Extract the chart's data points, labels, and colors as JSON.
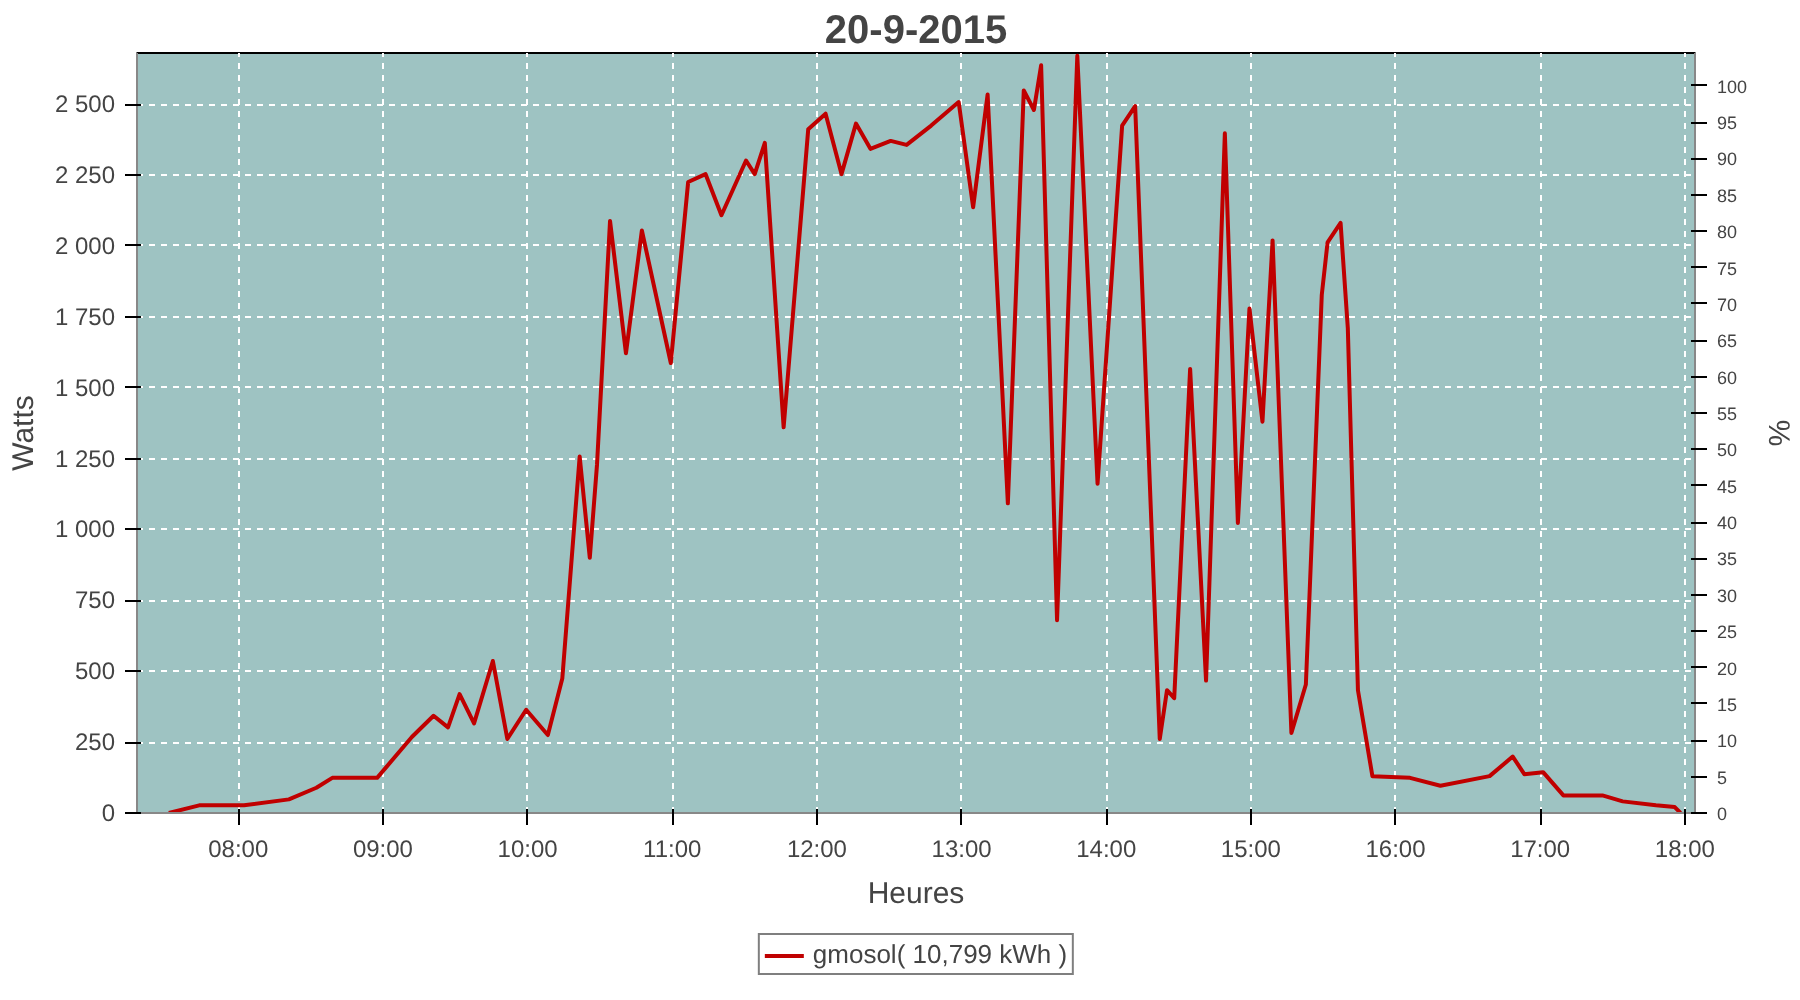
{
  "chart_data": {
    "type": "line",
    "title": "20-9-2015",
    "xlabel": "Heures",
    "ylabel": "Watts",
    "y2label": "%",
    "x": [
      7.52,
      7.73,
      8.04,
      8.35,
      8.54,
      8.65,
      8.96,
      9.2,
      9.35,
      9.45,
      9.53,
      9.63,
      9.76,
      9.86,
      9.99,
      10.14,
      10.24,
      10.36,
      10.43,
      10.48,
      10.57,
      10.68,
      10.79,
      10.99,
      11.11,
      11.23,
      11.34,
      11.51,
      11.57,
      11.64,
      11.77,
      11.94,
      12.06,
      12.17,
      12.27,
      12.37,
      12.51,
      12.62,
      12.79,
      12.98,
      13.08,
      13.18,
      13.32,
      13.43,
      13.5,
      13.55,
      13.66,
      13.8,
      13.94,
      14.11,
      14.2,
      14.37,
      14.42,
      14.47,
      14.58,
      14.69,
      14.82,
      14.91,
      14.99,
      15.08,
      15.15,
      15.28,
      15.38,
      15.49,
      15.53,
      15.62,
      15.67,
      15.74,
      15.84,
      16.1,
      16.31,
      16.65,
      16.81,
      16.89,
      17.02,
      17.16,
      17.43,
      17.57,
      17.8,
      17.93,
      17.97
    ],
    "series": [
      {
        "name": "gmosol( 10,799 kWh )",
        "color": "#c00000",
        "values": [
          0,
          27,
          27,
          48,
          89,
          124,
          124,
          268,
          343,
          302,
          419,
          316,
          536,
          261,
          364,
          275,
          474,
          1257,
          900,
          1229,
          2088,
          1621,
          2054,
          1587,
          2225,
          2253,
          2108,
          2301,
          2253,
          2363,
          1360,
          2411,
          2466,
          2253,
          2431,
          2342,
          2370,
          2356,
          2424,
          2507,
          2136,
          2534,
          1092,
          2548,
          2479,
          2637,
          680,
          2670,
          1161,
          2424,
          2493,
          261,
          433,
          405,
          1566,
          467,
          2397,
          1023,
          1779,
          1380,
          2019,
          282,
          453,
          1827,
          2012,
          2081,
          1710,
          433,
          130,
          124,
          96,
          130,
          199,
          137,
          144,
          62,
          62,
          41,
          27,
          21,
          0
        ]
      }
    ],
    "xlim": [
      7.3,
      18.07
    ],
    "xticks": [
      {
        "value": 8,
        "label": "08:00"
      },
      {
        "value": 9,
        "label": "09:00"
      },
      {
        "value": 10,
        "label": "10:00"
      },
      {
        "value": 11,
        "label": "11:00"
      },
      {
        "value": 12,
        "label": "12:00"
      },
      {
        "value": 13,
        "label": "13:00"
      },
      {
        "value": 14,
        "label": "14:00"
      },
      {
        "value": 15,
        "label": "15:00"
      },
      {
        "value": 16,
        "label": "16:00"
      },
      {
        "value": 17,
        "label": "17:00"
      },
      {
        "value": 18,
        "label": "18:00"
      }
    ],
    "ylim": [
      0,
      2680
    ],
    "yticks": [
      0,
      250,
      500,
      750,
      {
        "value": 1000,
        "label": "1 000"
      },
      {
        "value": 1250,
        "label": "1 250"
      },
      {
        "value": 1500,
        "label": "1 500"
      },
      {
        "value": 1750,
        "label": "1 750"
      },
      {
        "value": 2000,
        "label": "2 000"
      },
      {
        "value": 2250,
        "label": "2 250"
      },
      {
        "value": 2500,
        "label": "2 500"
      }
    ],
    "y2lim": [
      0,
      104.5
    ],
    "y2ticks": [
      0,
      5,
      10,
      15,
      20,
      25,
      30,
      35,
      40,
      45,
      50,
      55,
      60,
      65,
      70,
      75,
      80,
      85,
      90,
      95,
      100
    ],
    "grid": true,
    "legend": "bottom",
    "line_style": "solid",
    "marker": "none"
  }
}
